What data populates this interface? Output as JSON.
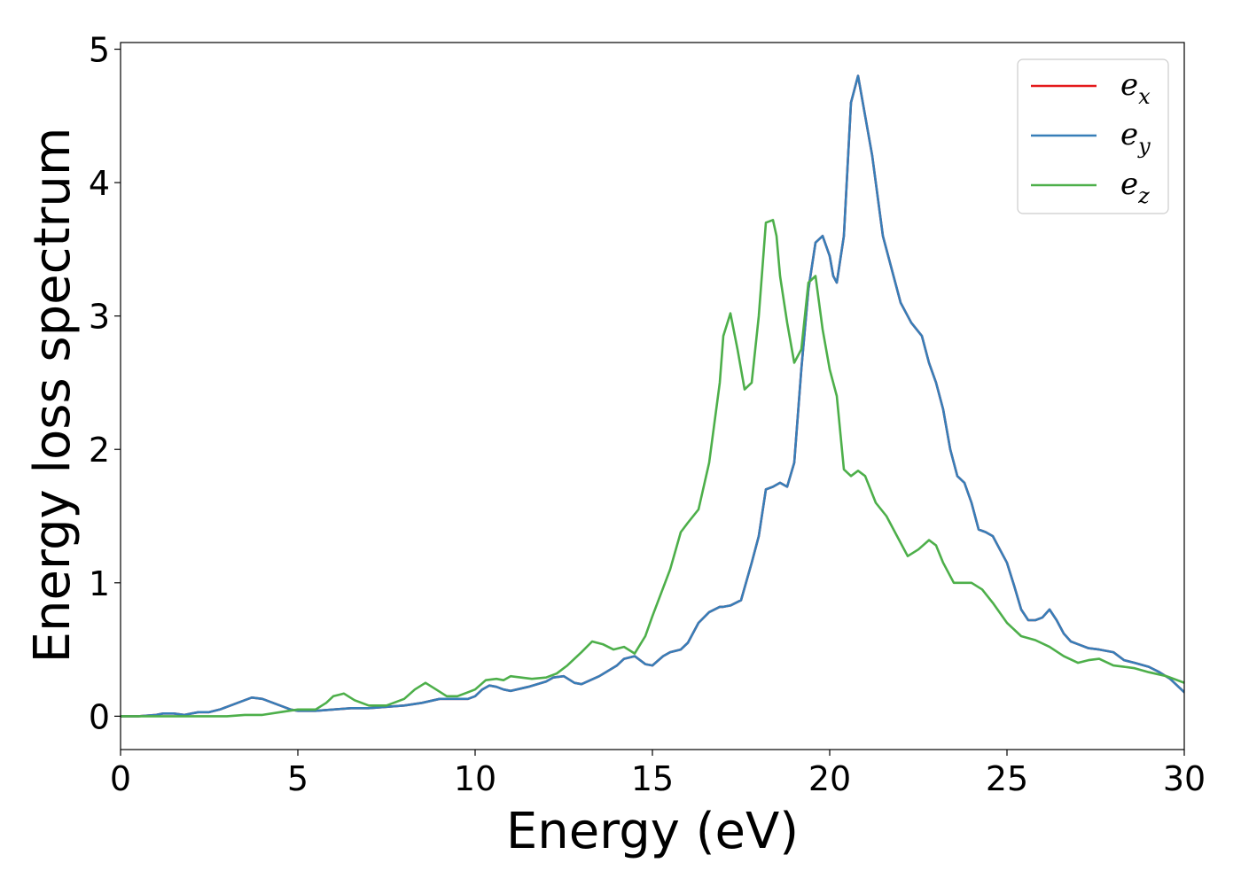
{
  "chart_data": {
    "type": "line",
    "title": "",
    "xlabel": "Energy (eV)",
    "ylabel": "Energy loss spectrum",
    "xlim": [
      0,
      30
    ],
    "ylim": [
      -0.25,
      5.05
    ],
    "xticks": [
      0,
      5,
      10,
      15,
      20,
      25,
      30
    ],
    "yticks": [
      0,
      1,
      2,
      3,
      4,
      5
    ],
    "grid": false,
    "legend_position": "top-right",
    "series": [
      {
        "name": "e",
        "name_subscript": "x",
        "color": "#e41a1c",
        "x": [
          0,
          0.5,
          1.0,
          1.2,
          1.5,
          1.8,
          2.0,
          2.2,
          2.5,
          2.8,
          3.0,
          3.3,
          3.7,
          4.0,
          4.2,
          4.5,
          4.8,
          5.0,
          5.5,
          6.0,
          6.5,
          7.0,
          7.5,
          8.0,
          8.5,
          9.0,
          9.5,
          9.8,
          10.0,
          10.2,
          10.4,
          10.6,
          10.8,
          11.0,
          11.5,
          12.0,
          12.2,
          12.5,
          12.8,
          13.0,
          13.5,
          14.0,
          14.2,
          14.5,
          14.8,
          15.0,
          15.3,
          15.5,
          15.8,
          16.0,
          16.3,
          16.6,
          16.9,
          17.0,
          17.2,
          17.5,
          17.8,
          18.0,
          18.2,
          18.4,
          18.6,
          18.8,
          19.0,
          19.2,
          19.4,
          19.6,
          19.8,
          20.0,
          20.1,
          20.2,
          20.4,
          20.6,
          20.8,
          21.0,
          21.2,
          21.5,
          21.8,
          22.0,
          22.3,
          22.6,
          22.8,
          23.0,
          23.2,
          23.4,
          23.6,
          23.8,
          24.0,
          24.2,
          24.4,
          24.6,
          24.8,
          25.0,
          25.2,
          25.4,
          25.6,
          25.8,
          26.0,
          26.2,
          26.4,
          26.6,
          26.8,
          27.0,
          27.3,
          27.6,
          28.0,
          28.3,
          28.6,
          29.0,
          29.3,
          29.6,
          30.0
        ],
        "y": [
          0.0,
          0.0,
          0.01,
          0.02,
          0.02,
          0.01,
          0.02,
          0.03,
          0.03,
          0.05,
          0.07,
          0.1,
          0.14,
          0.13,
          0.11,
          0.08,
          0.05,
          0.04,
          0.04,
          0.05,
          0.06,
          0.06,
          0.07,
          0.08,
          0.1,
          0.13,
          0.13,
          0.13,
          0.15,
          0.2,
          0.23,
          0.22,
          0.2,
          0.19,
          0.22,
          0.26,
          0.29,
          0.3,
          0.25,
          0.24,
          0.3,
          0.38,
          0.43,
          0.45,
          0.39,
          0.38,
          0.45,
          0.48,
          0.5,
          0.55,
          0.7,
          0.78,
          0.82,
          0.82,
          0.83,
          0.87,
          1.15,
          1.35,
          1.7,
          1.72,
          1.75,
          1.72,
          1.9,
          2.6,
          3.2,
          3.55,
          3.6,
          3.45,
          3.3,
          3.25,
          3.6,
          4.6,
          4.8,
          4.5,
          4.2,
          3.6,
          3.3,
          3.1,
          2.95,
          2.85,
          2.65,
          2.5,
          2.3,
          2.0,
          1.8,
          1.75,
          1.6,
          1.4,
          1.38,
          1.35,
          1.25,
          1.15,
          0.98,
          0.8,
          0.72,
          0.72,
          0.74,
          0.8,
          0.72,
          0.62,
          0.56,
          0.54,
          0.51,
          0.5,
          0.48,
          0.42,
          0.4,
          0.37,
          0.33,
          0.28,
          0.18
        ]
      },
      {
        "name": "e",
        "name_subscript": "y",
        "color": "#377eb8",
        "x": [
          0,
          0.5,
          1.0,
          1.2,
          1.5,
          1.8,
          2.0,
          2.2,
          2.5,
          2.8,
          3.0,
          3.3,
          3.7,
          4.0,
          4.2,
          4.5,
          4.8,
          5.0,
          5.5,
          6.0,
          6.5,
          7.0,
          7.5,
          8.0,
          8.5,
          9.0,
          9.5,
          9.8,
          10.0,
          10.2,
          10.4,
          10.6,
          10.8,
          11.0,
          11.5,
          12.0,
          12.2,
          12.5,
          12.8,
          13.0,
          13.5,
          14.0,
          14.2,
          14.5,
          14.8,
          15.0,
          15.3,
          15.5,
          15.8,
          16.0,
          16.3,
          16.6,
          16.9,
          17.0,
          17.2,
          17.5,
          17.8,
          18.0,
          18.2,
          18.4,
          18.6,
          18.8,
          19.0,
          19.2,
          19.4,
          19.6,
          19.8,
          20.0,
          20.1,
          20.2,
          20.4,
          20.6,
          20.8,
          21.0,
          21.2,
          21.5,
          21.8,
          22.0,
          22.3,
          22.6,
          22.8,
          23.0,
          23.2,
          23.4,
          23.6,
          23.8,
          24.0,
          24.2,
          24.4,
          24.6,
          24.8,
          25.0,
          25.2,
          25.4,
          25.6,
          25.8,
          26.0,
          26.2,
          26.4,
          26.6,
          26.8,
          27.0,
          27.3,
          27.6,
          28.0,
          28.3,
          28.6,
          29.0,
          29.3,
          29.6,
          30.0
        ],
        "y": [
          0.0,
          0.0,
          0.01,
          0.02,
          0.02,
          0.01,
          0.02,
          0.03,
          0.03,
          0.05,
          0.07,
          0.1,
          0.14,
          0.13,
          0.11,
          0.08,
          0.05,
          0.04,
          0.04,
          0.05,
          0.06,
          0.06,
          0.07,
          0.08,
          0.1,
          0.13,
          0.13,
          0.13,
          0.15,
          0.2,
          0.23,
          0.22,
          0.2,
          0.19,
          0.22,
          0.26,
          0.29,
          0.3,
          0.25,
          0.24,
          0.3,
          0.38,
          0.43,
          0.45,
          0.39,
          0.38,
          0.45,
          0.48,
          0.5,
          0.55,
          0.7,
          0.78,
          0.82,
          0.82,
          0.83,
          0.87,
          1.15,
          1.35,
          1.7,
          1.72,
          1.75,
          1.72,
          1.9,
          2.6,
          3.2,
          3.55,
          3.6,
          3.45,
          3.3,
          3.25,
          3.6,
          4.6,
          4.8,
          4.5,
          4.2,
          3.6,
          3.3,
          3.1,
          2.95,
          2.85,
          2.65,
          2.5,
          2.3,
          2.0,
          1.8,
          1.75,
          1.6,
          1.4,
          1.38,
          1.35,
          1.25,
          1.15,
          0.98,
          0.8,
          0.72,
          0.72,
          0.74,
          0.8,
          0.72,
          0.62,
          0.56,
          0.54,
          0.51,
          0.5,
          0.48,
          0.42,
          0.4,
          0.37,
          0.33,
          0.28,
          0.18
        ]
      },
      {
        "name": "e",
        "name_subscript": "z",
        "color": "#4daf4a",
        "x": [
          0,
          1.0,
          2.0,
          3.0,
          3.5,
          4.0,
          4.5,
          5.0,
          5.5,
          5.8,
          6.0,
          6.3,
          6.6,
          7.0,
          7.5,
          8.0,
          8.3,
          8.6,
          8.9,
          9.2,
          9.5,
          9.8,
          10.0,
          10.3,
          10.6,
          10.8,
          11.0,
          11.3,
          11.6,
          12.0,
          12.3,
          12.6,
          13.0,
          13.3,
          13.6,
          13.9,
          14.2,
          14.5,
          14.8,
          15.0,
          15.5,
          15.8,
          16.0,
          16.3,
          16.6,
          16.9,
          17.0,
          17.2,
          17.4,
          17.6,
          17.8,
          18.0,
          18.2,
          18.4,
          18.5,
          18.6,
          18.8,
          19.0,
          19.2,
          19.4,
          19.6,
          19.8,
          20.0,
          20.2,
          20.4,
          20.6,
          20.8,
          21.0,
          21.3,
          21.6,
          21.9,
          22.2,
          22.5,
          22.8,
          23.0,
          23.2,
          23.5,
          23.8,
          24.0,
          24.3,
          24.6,
          25.0,
          25.4,
          25.8,
          26.2,
          26.6,
          27.0,
          27.3,
          27.6,
          28.0,
          28.3,
          28.6,
          29.0,
          29.5,
          30.0
        ],
        "y": [
          0.0,
          0.0,
          0.0,
          0.0,
          0.01,
          0.01,
          0.03,
          0.05,
          0.05,
          0.1,
          0.15,
          0.17,
          0.12,
          0.08,
          0.08,
          0.13,
          0.2,
          0.25,
          0.2,
          0.15,
          0.15,
          0.18,
          0.2,
          0.27,
          0.28,
          0.27,
          0.3,
          0.29,
          0.28,
          0.29,
          0.32,
          0.38,
          0.48,
          0.56,
          0.54,
          0.5,
          0.52,
          0.47,
          0.6,
          0.75,
          1.1,
          1.38,
          1.45,
          1.55,
          1.9,
          2.5,
          2.85,
          3.02,
          2.75,
          2.45,
          2.5,
          3.0,
          3.7,
          3.72,
          3.6,
          3.3,
          2.95,
          2.65,
          2.75,
          3.25,
          3.3,
          2.9,
          2.6,
          2.4,
          1.85,
          1.8,
          1.84,
          1.8,
          1.6,
          1.5,
          1.35,
          1.2,
          1.25,
          1.32,
          1.28,
          1.15,
          1.0,
          1.0,
          1.0,
          0.95,
          0.85,
          0.7,
          0.6,
          0.57,
          0.52,
          0.45,
          0.4,
          0.42,
          0.43,
          0.38,
          0.37,
          0.36,
          0.33,
          0.3,
          0.25
        ]
      }
    ]
  }
}
